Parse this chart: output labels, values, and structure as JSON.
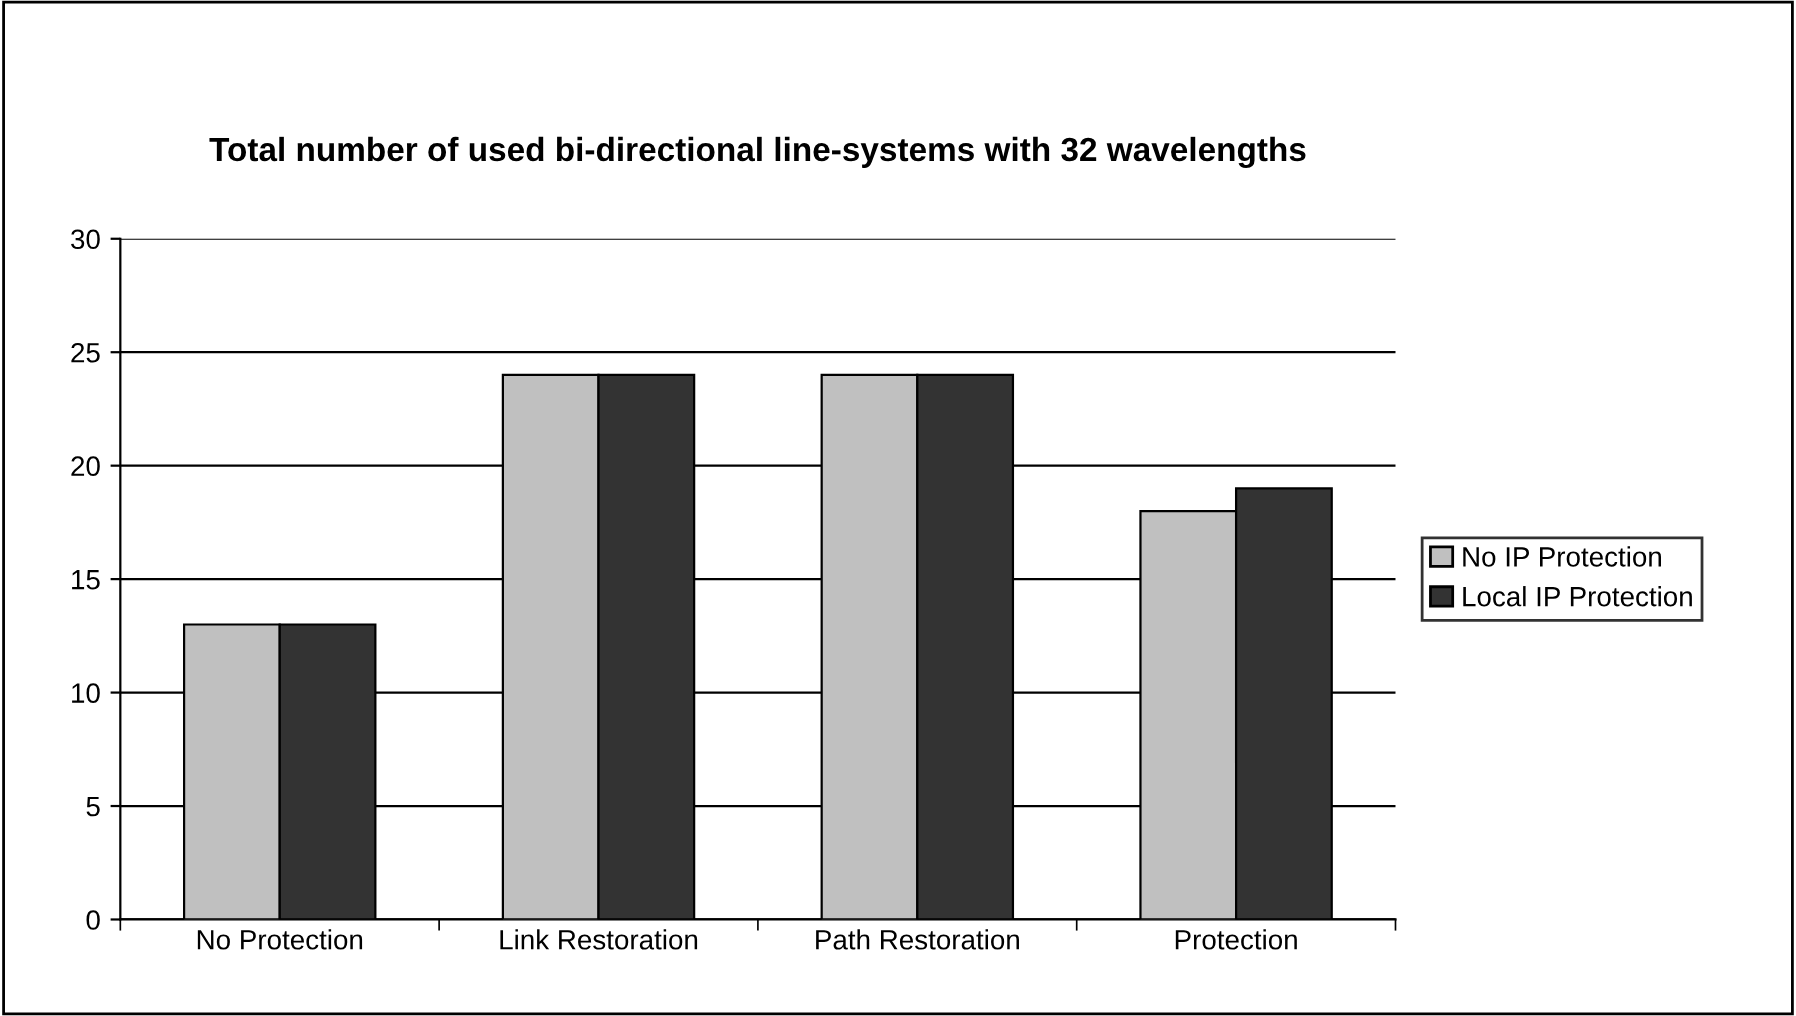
{
  "chart_data": {
    "type": "bar",
    "title": "Total number of used bi-directional line-systems with 32 wavelengths",
    "categories": [
      "No Protection",
      "Link Restoration",
      "Path Restoration",
      "Protection"
    ],
    "series": [
      {
        "name": "No IP Protection",
        "color": "#c0c0c0",
        "values": [
          13,
          24,
          24,
          18
        ]
      },
      {
        "name": "Local IP Protection",
        "color": "#333333",
        "values": [
          13,
          24,
          24,
          19
        ]
      }
    ],
    "ylim": [
      0,
      30
    ],
    "yticks": [
      0,
      5,
      10,
      15,
      20,
      25,
      30
    ],
    "grid": "y",
    "legend": "right"
  }
}
